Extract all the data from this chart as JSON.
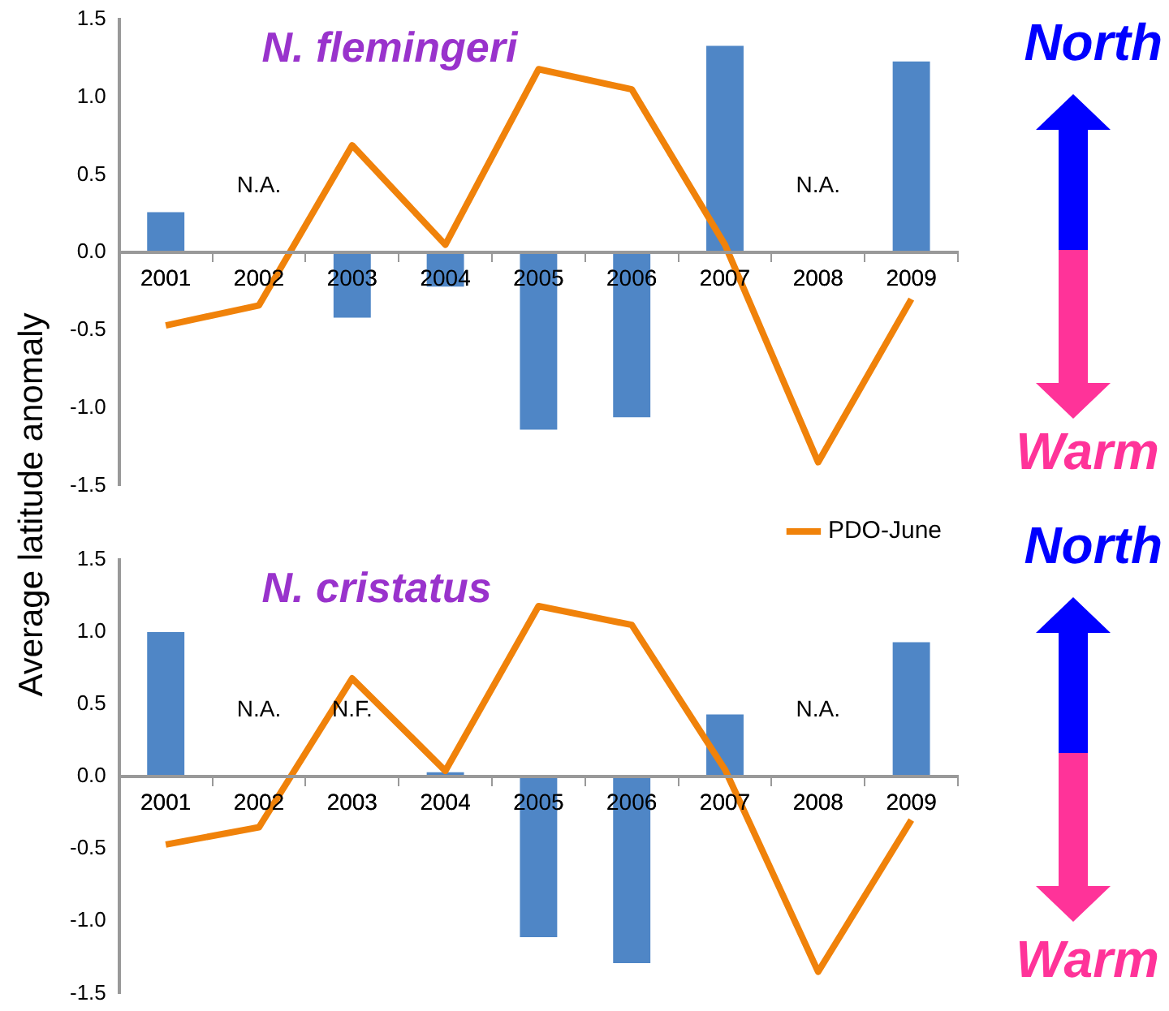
{
  "chart_data": [
    {
      "type": "bar",
      "title": "N. flemingeri",
      "ylabel": "Average latitude anomaly",
      "categories": [
        "2001",
        "2002",
        "2003",
        "2004",
        "2005",
        "2006",
        "2007",
        "2008",
        "2009"
      ],
      "series": [
        {
          "color": "#4f86c6",
          "values": [
            0.26,
            null,
            -0.42,
            -0.22,
            -1.14,
            -1.06,
            1.33,
            null,
            1.23
          ]
        },
        {
          "type": "line",
          "color": "#f0820a",
          "values": [
            -0.47,
            -0.34,
            0.69,
            0.05,
            1.18,
            1.05,
            0.05,
            -1.35,
            -0.3
          ]
        }
      ],
      "ylim": [
        -1.5,
        1.5
      ],
      "yticks": [
        {
          "value": -1.5,
          "label": "-1.5"
        },
        {
          "value": -1,
          "label": "-1.0"
        },
        {
          "value": -0.5,
          "label": "-0.5"
        },
        {
          "value": 0,
          "label": "0.0"
        },
        {
          "value": 0.5,
          "label": "0.5"
        },
        {
          "value": 1,
          "label": "1.0"
        },
        {
          "value": 1.5,
          "label": "1.5"
        }
      ],
      "marker": "none",
      "annotations": [
        "N.A.",
        "N.A.",
        "North",
        "Warm"
      ]
    },
    {
      "type": "bar",
      "title": "N. cristatus",
      "categories": [
        "2001",
        "2002",
        "2003",
        "2004",
        "2005",
        "2006",
        "2007",
        "2008",
        "2009"
      ],
      "series": [
        {
          "color": "#4f86c6",
          "values": [
            1.0,
            null,
            null,
            0.03,
            -1.11,
            -1.29,
            0.43,
            null,
            0.93
          ]
        },
        {
          "type": "line",
          "name": "PDO-June",
          "color": "#f0820a",
          "values": [
            -0.47,
            -0.35,
            0.68,
            0.04,
            1.18,
            1.05,
            0.05,
            -1.35,
            -0.3
          ]
        }
      ],
      "ylim": [
        -1.5,
        1.5
      ],
      "yticks": [
        {
          "value": -1.5,
          "label": "-1.5"
        },
        {
          "value": -1,
          "label": "-1.0"
        },
        {
          "value": -0.5,
          "label": "-0.5"
        },
        {
          "value": 0,
          "label": "0.0"
        },
        {
          "value": 0.5,
          "label": "0.5"
        },
        {
          "value": 1,
          "label": "1.0"
        },
        {
          "value": 1.5,
          "label": "1.5"
        }
      ],
      "marker": "none",
      "legend": "top right",
      "annotations": [
        "N.A.",
        "N.F.",
        "N.A.",
        "North",
        "Warm"
      ]
    }
  ]
}
